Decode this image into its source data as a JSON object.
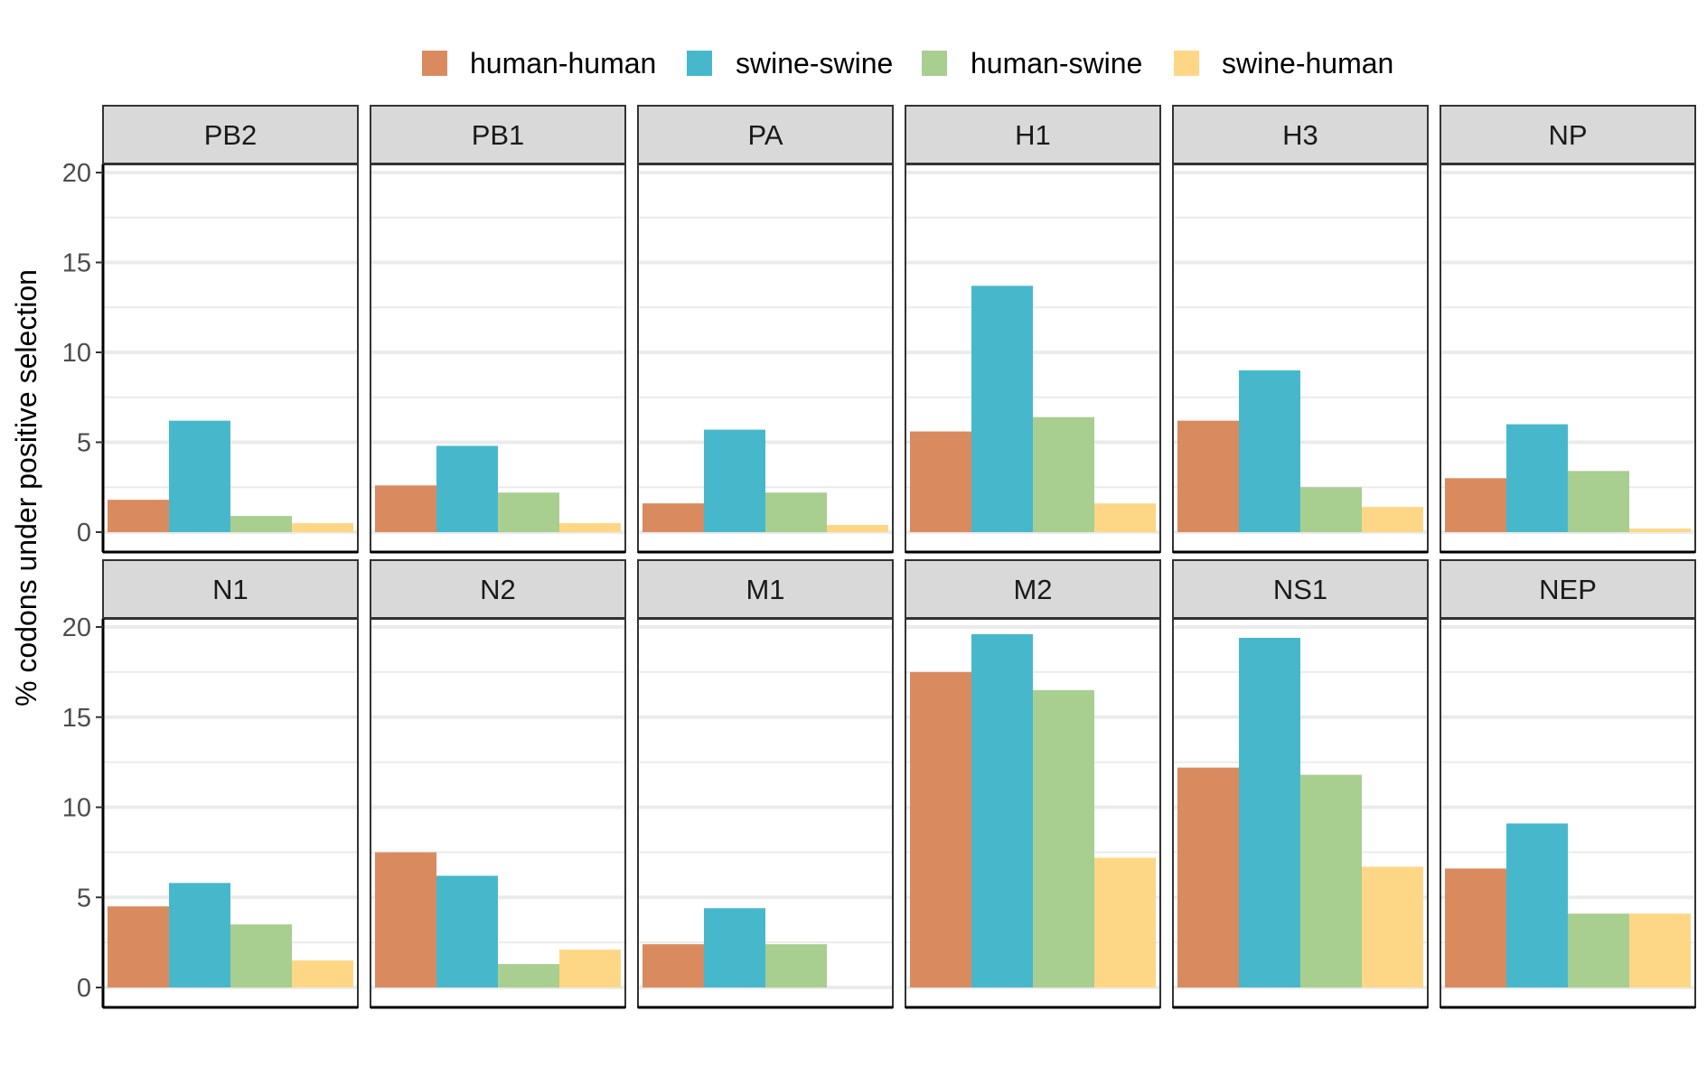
{
  "chart_data": {
    "type": "bar",
    "ylabel": "% codons under positive selection",
    "ylim": [
      0,
      20
    ],
    "yticks": [
      0,
      5,
      10,
      15,
      20
    ],
    "legend_position": "top",
    "series": [
      {
        "name": "human-human",
        "color": "#D98B5F"
      },
      {
        "name": "swine-swine",
        "color": "#47B8CC"
      },
      {
        "name": "human-swine",
        "color": "#A8CE90"
      },
      {
        "name": "swine-human",
        "color": "#FED786"
      }
    ],
    "panels": [
      {
        "label": "PB2",
        "values": [
          1.8,
          6.2,
          0.9,
          0.5
        ]
      },
      {
        "label": "PB1",
        "values": [
          2.6,
          4.8,
          2.2,
          0.5
        ]
      },
      {
        "label": "PA",
        "values": [
          1.6,
          5.7,
          2.2,
          0.4
        ]
      },
      {
        "label": "H1",
        "values": [
          5.6,
          13.7,
          6.4,
          1.6
        ]
      },
      {
        "label": "H3",
        "values": [
          6.2,
          9.0,
          2.5,
          1.4
        ]
      },
      {
        "label": "NP",
        "values": [
          3.0,
          6.0,
          3.4,
          0.2
        ]
      },
      {
        "label": "N1",
        "values": [
          4.5,
          5.8,
          3.5,
          1.5
        ]
      },
      {
        "label": "N2",
        "values": [
          7.5,
          6.2,
          1.3,
          2.1
        ]
      },
      {
        "label": "M1",
        "values": [
          2.4,
          4.4,
          2.4,
          0
        ]
      },
      {
        "label": "M2",
        "values": [
          17.5,
          19.6,
          16.5,
          7.2
        ]
      },
      {
        "label": "NS1",
        "values": [
          12.2,
          19.4,
          11.8,
          6.7
        ]
      },
      {
        "label": "NEP",
        "values": [
          6.6,
          9.1,
          4.1,
          4.1
        ]
      }
    ]
  }
}
